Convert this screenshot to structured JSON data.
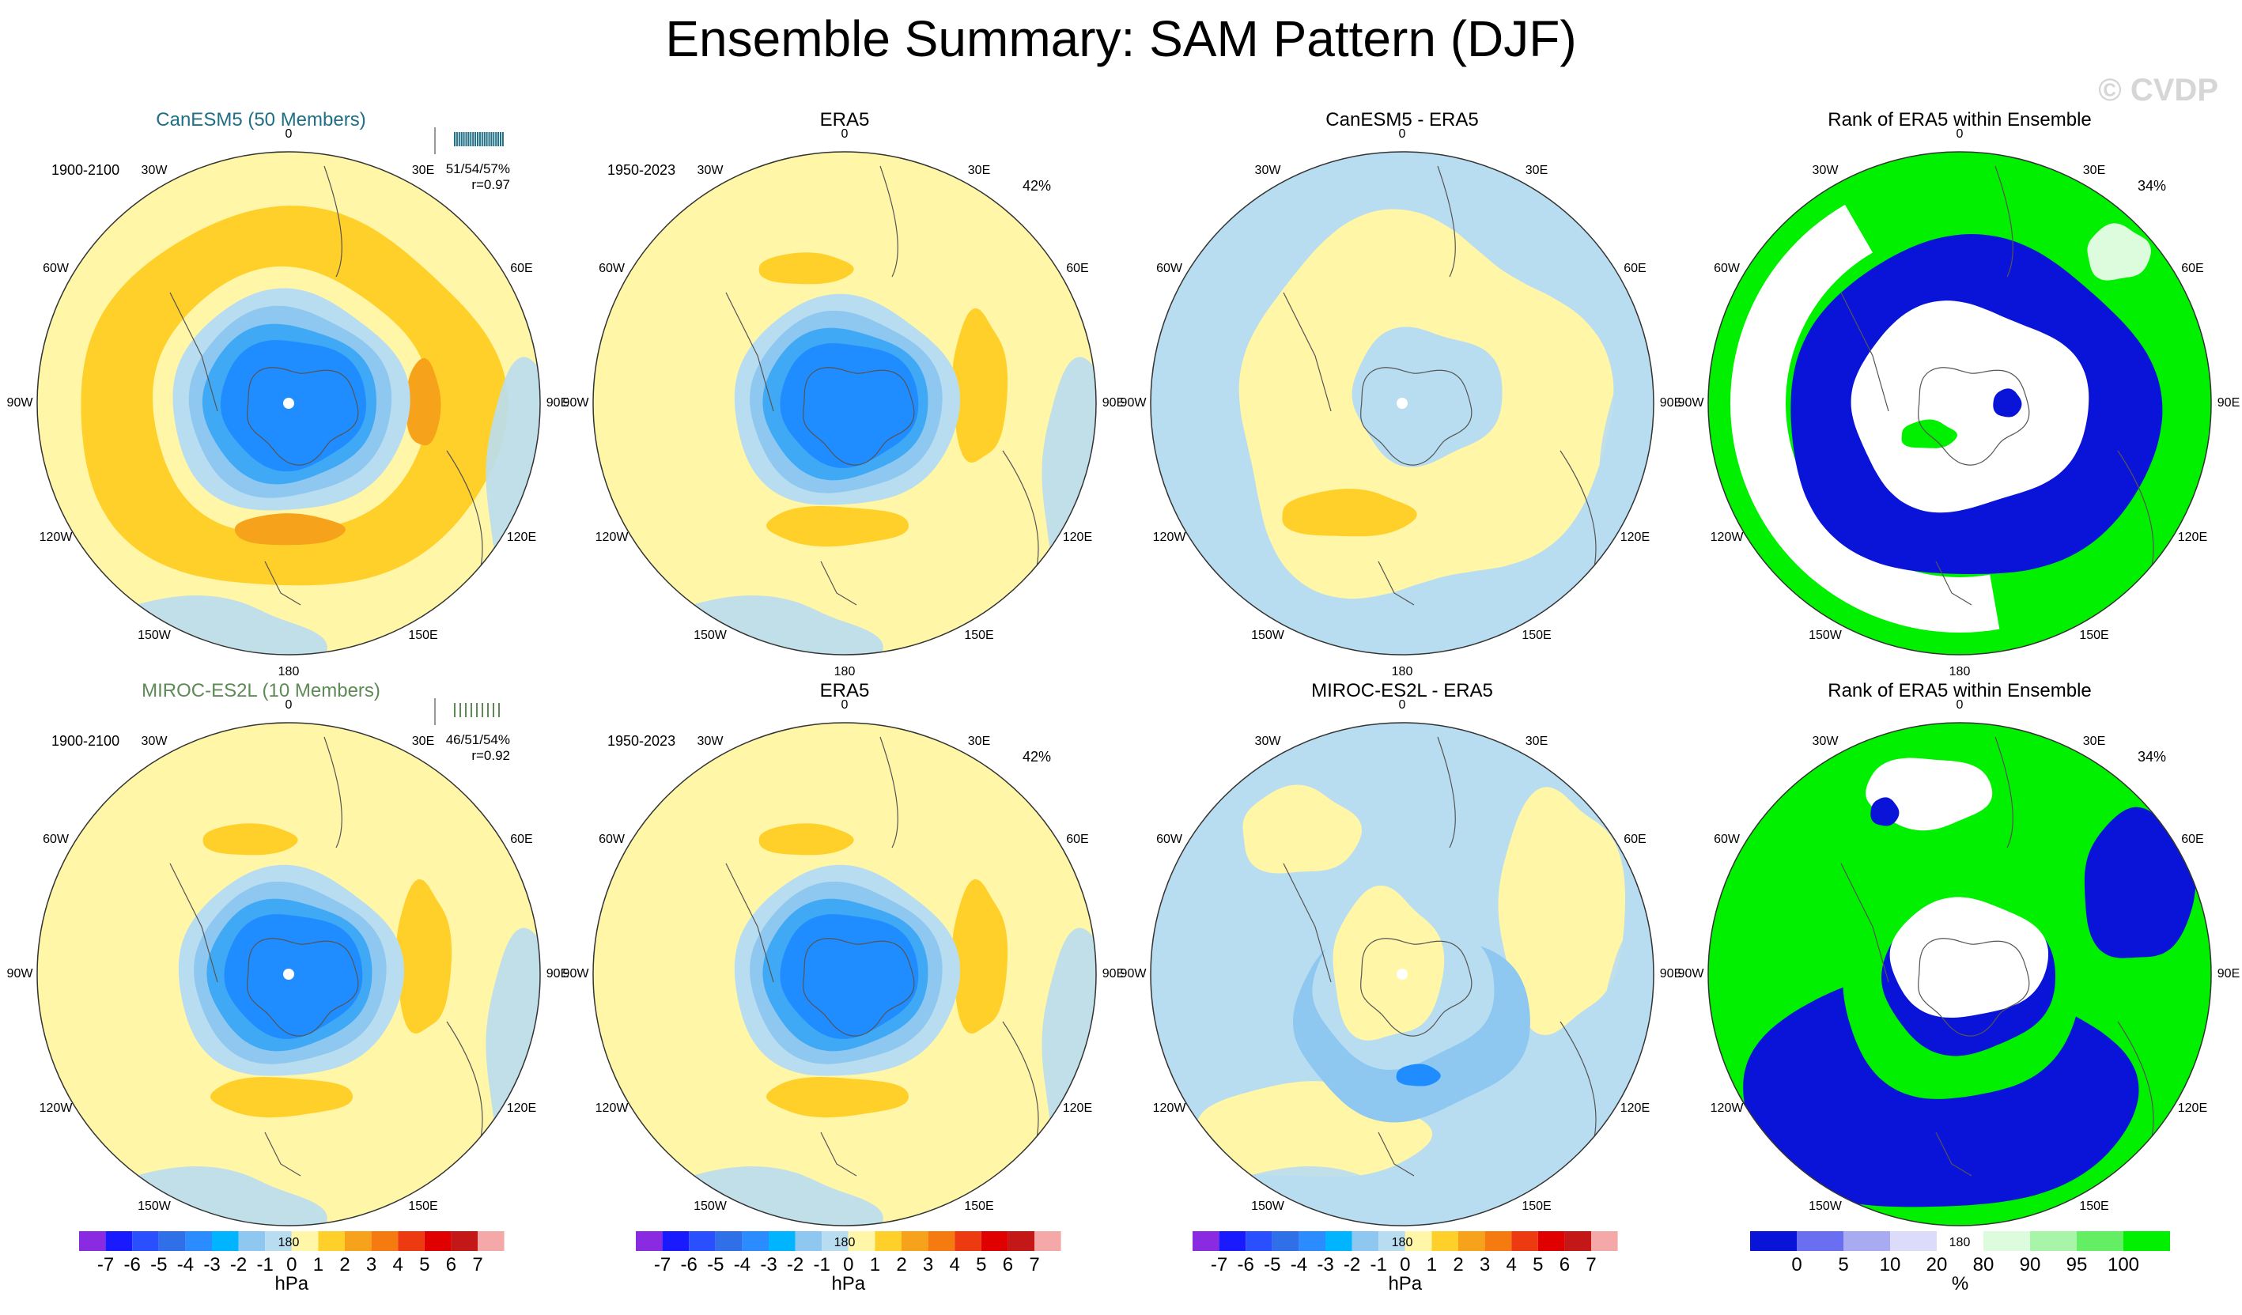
{
  "figure": {
    "title": "Ensemble Summary: SAM Pattern (DJF)",
    "watermark": "© CVDP"
  },
  "colors": {
    "blue_strong": "#1f8cff",
    "blue_mid": "#3fa9f5",
    "blue_light": "#8ec8f0",
    "blue_pale": "#b9ddf0",
    "yellow": "#fff6a8",
    "yellow_mid": "#ffd02a",
    "orange": "#f7a21b",
    "rank_blue": "#0a14d8",
    "rank_green": "#00f000",
    "rank_white": "#ffffff"
  },
  "longitude_labels": [
    "0",
    "30E",
    "60E",
    "90E",
    "120E",
    "150E",
    "180",
    "150W",
    "120W",
    "90W",
    "60W",
    "30W"
  ],
  "panels": [
    {
      "row": 0,
      "col": 0,
      "title": "CanESM5 (50 Members)",
      "title_style": "teal",
      "period": "1900-2100",
      "pct": "",
      "stats_line1": "51/54/57%",
      "stats_line2": "r=0.97"
    },
    {
      "row": 0,
      "col": 1,
      "title": "ERA5",
      "title_style": "plain",
      "period": "1950-2023",
      "pct": "42%",
      "stats_line1": "",
      "stats_line2": ""
    },
    {
      "row": 0,
      "col": 2,
      "title": "CanESM5 - ERA5",
      "title_style": "plain",
      "period": "",
      "pct": "",
      "stats_line1": "",
      "stats_line2": ""
    },
    {
      "row": 0,
      "col": 3,
      "title": "Rank of ERA5 within Ensemble",
      "title_style": "plain",
      "period": "",
      "pct": "34%",
      "stats_line1": "",
      "stats_line2": ""
    },
    {
      "row": 1,
      "col": 0,
      "title": "MIROC-ES2L (10 Members)",
      "title_style": "green",
      "period": "1900-2100",
      "pct": "",
      "stats_line1": "46/51/54%",
      "stats_line2": "r=0.92"
    },
    {
      "row": 1,
      "col": 1,
      "title": "ERA5",
      "title_style": "plain",
      "period": "1950-2023",
      "pct": "42%",
      "stats_line1": "",
      "stats_line2": ""
    },
    {
      "row": 1,
      "col": 2,
      "title": "MIROC-ES2L - ERA5",
      "title_style": "plain",
      "period": "",
      "pct": "",
      "stats_line1": "",
      "stats_line2": ""
    },
    {
      "row": 1,
      "col": 3,
      "title": "Rank of ERA5 within Ensemble",
      "title_style": "plain",
      "period": "",
      "pct": "34%",
      "stats_line1": "",
      "stats_line2": ""
    }
  ],
  "chart_data": [
    {
      "type": "heatmap",
      "name": "SAM pattern colorbar (hPa)",
      "unit": "hPa",
      "tick_labels": [
        "-7",
        "-6",
        "-5",
        "-4",
        "-3",
        "-2",
        "-1",
        "0",
        "1",
        "2",
        "3",
        "4",
        "5",
        "6",
        "7"
      ],
      "colors": [
        "#8a2be2",
        "#1a1aff",
        "#2a4fff",
        "#2f6fe8",
        "#2a8cff",
        "#00b4ff",
        "#8ec8f0",
        "#b9ddf0",
        "#fff6a8",
        "#ffd02a",
        "#f7a21b",
        "#f57a10",
        "#ee3a10",
        "#e00000",
        "#c41818",
        "#f5a8a8"
      ]
    },
    {
      "type": "heatmap",
      "name": "Rank colorbar (%)",
      "unit": "%",
      "tick_labels": [
        "0",
        "5",
        "10",
        "20",
        "80",
        "90",
        "95",
        "100"
      ],
      "colors": [
        "#0a14d8",
        "#6a6ef0",
        "#a8aaf2",
        "#dcdcfa",
        "#ffffff",
        "#ddfbdd",
        "#a8f4a8",
        "#64ee64",
        "#00f000"
      ]
    }
  ]
}
